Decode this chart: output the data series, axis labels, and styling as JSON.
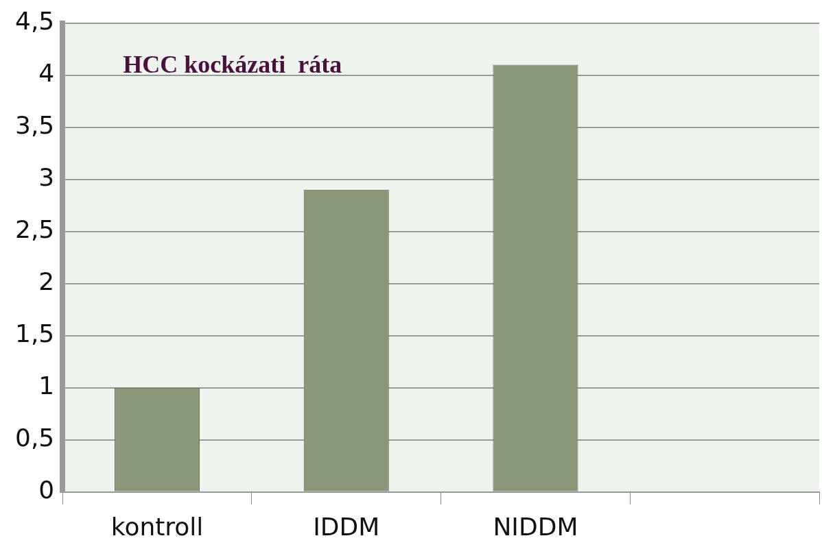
{
  "chart_data": {
    "type": "bar",
    "title": "HCC kockázati  ráta",
    "categories": [
      "kontroll",
      "IDDM",
      "NIDDM",
      null
    ],
    "values": [
      1,
      2.9,
      4.1,
      null
    ],
    "color": "#8a9878",
    "ylim": [
      0,
      4.5
    ],
    "yticks": [
      0,
      {
        "value": 0.5,
        "label": "0,5"
      },
      1,
      {
        "value": 1.5,
        "label": "1,5"
      },
      2,
      {
        "value": 2.5,
        "label": "2,5"
      },
      3,
      {
        "value": 3.5,
        "label": "3,5"
      },
      4,
      {
        "value": 4.5,
        "label": "4,5"
      }
    ],
    "grid": "y",
    "legend": false
  }
}
